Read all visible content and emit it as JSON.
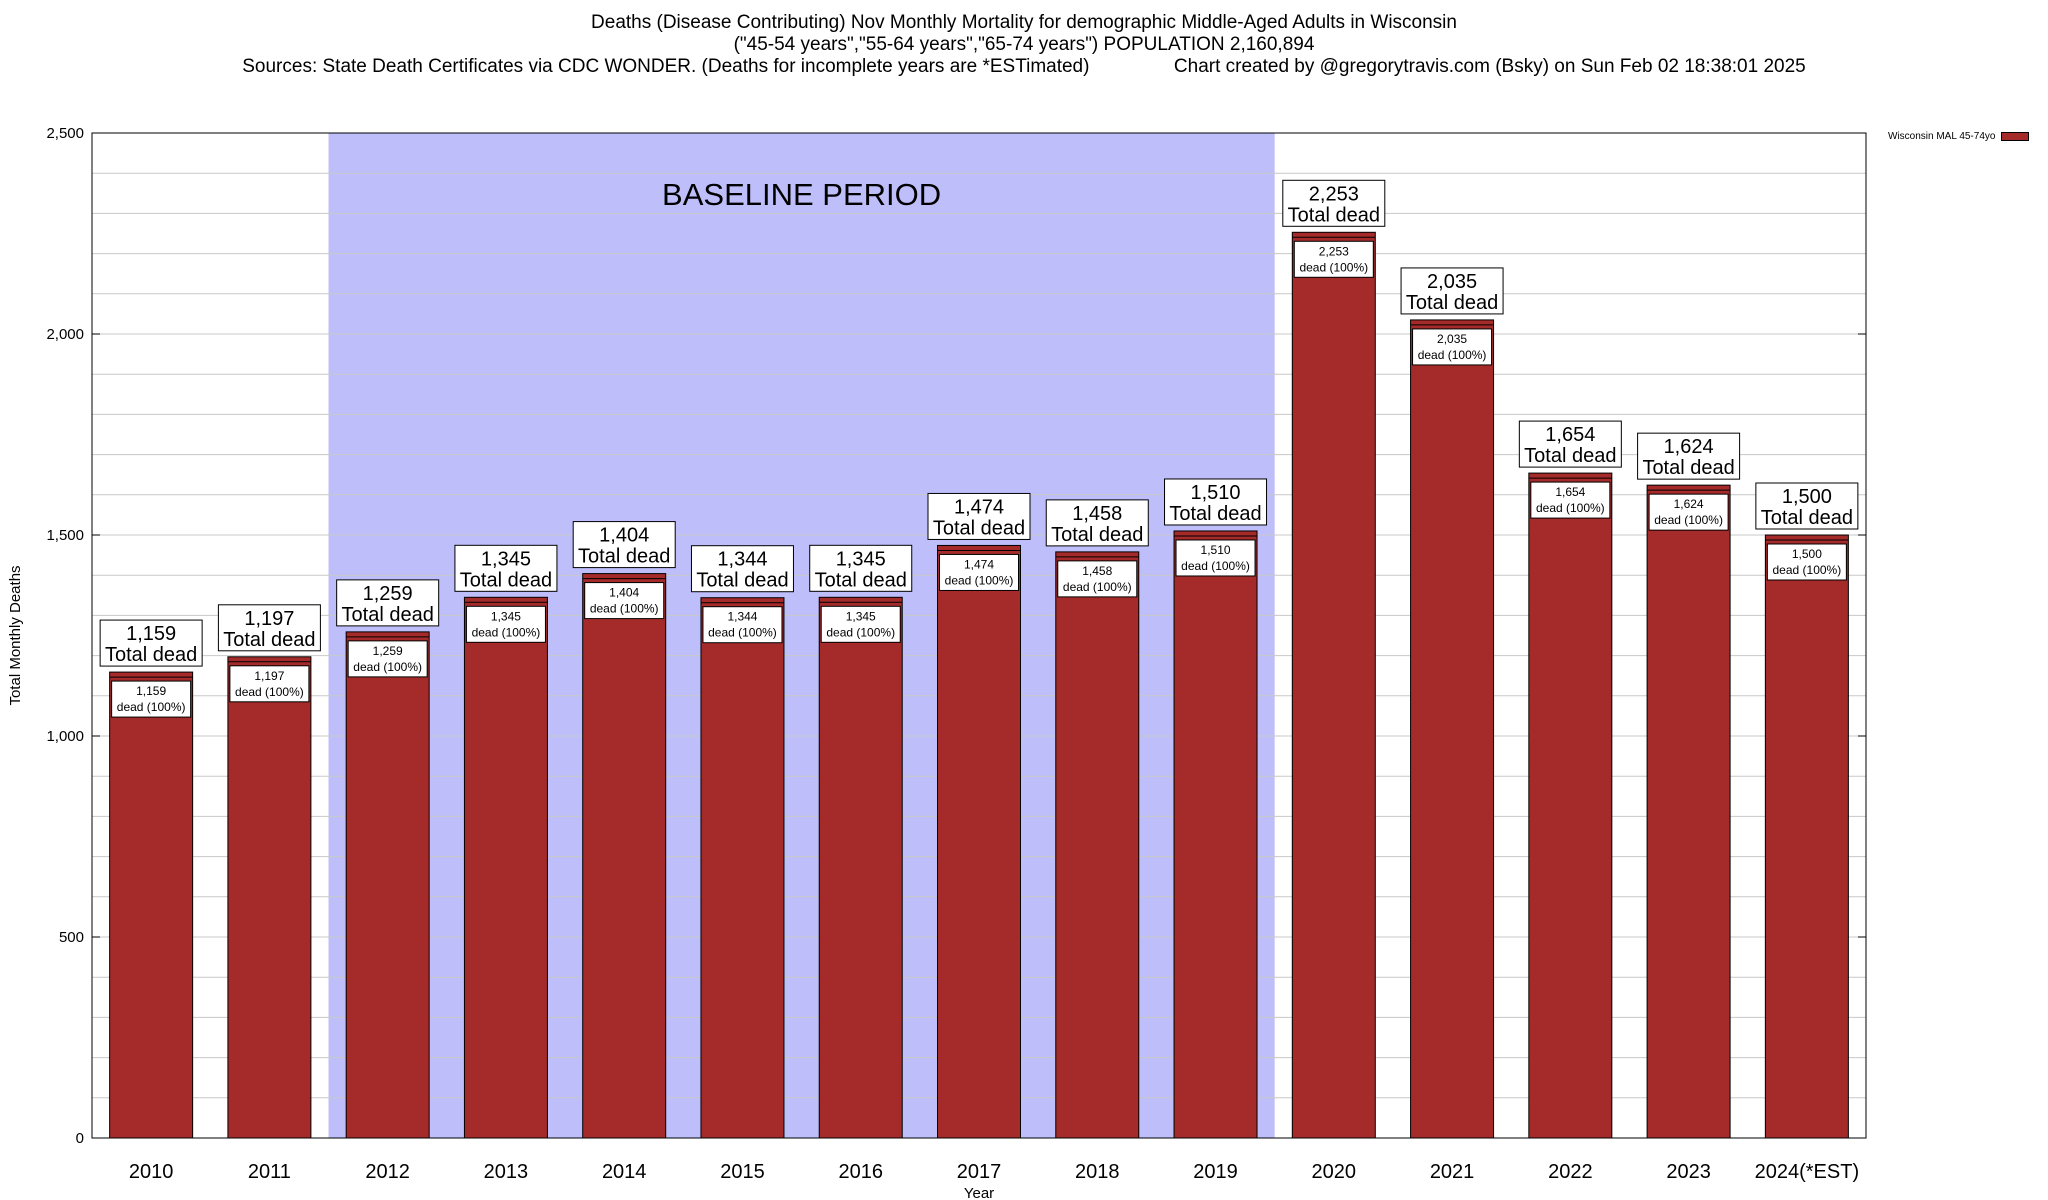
{
  "title_lines": [
    "Deaths (Disease Contributing) Nov Monthly Mortality for demographic Middle-Aged Adults in Wisconsin",
    "(\"45-54 years\",\"55-64 years\",\"65-74 years\") POPULATION 2,160,894",
    "Sources: State Death Certificates via CDC WONDER. (Deaths for incomplete years are *ESTimated)                Chart created by @gregorytravis.com (Bsky) on Sun Feb 02 18:38:01 2025"
  ],
  "chart_data": {
    "type": "bar",
    "categories": [
      "2010",
      "2011",
      "2012",
      "2013",
      "2014",
      "2015",
      "2016",
      "2017",
      "2018",
      "2019",
      "2020",
      "2021",
      "2022",
      "2023",
      "2024(*EST)"
    ],
    "series": [
      {
        "name": "Wisconsin MAL 45-74yo",
        "values": [
          1159,
          1197,
          1259,
          1345,
          1404,
          1344,
          1345,
          1474,
          1458,
          1510,
          2253,
          2035,
          1654,
          1624,
          1500
        ]
      }
    ],
    "value_labels": [
      "1,159",
      "1,197",
      "1,259",
      "1,345",
      "1,404",
      "1,344",
      "1,345",
      "1,474",
      "1,458",
      "1,510",
      "2,253",
      "2,035",
      "1,654",
      "1,624",
      "1,500"
    ],
    "total_label": "Total dead",
    "inner_label": "dead (100%)",
    "xlabel": "Year",
    "ylabel": "Total Monthly Deaths",
    "ylim": [
      0,
      2500
    ],
    "yticks": [
      0,
      500,
      1000,
      1500,
      2000,
      2500
    ],
    "ytick_labels": [
      "0",
      "500",
      "1,000",
      "1,500",
      "2,000",
      "2,500"
    ],
    "baseline_period": {
      "label": "BASELINE PERIOD",
      "from": "2012",
      "to": "2019"
    },
    "grid": true,
    "legend_position": "top-right",
    "colors": {
      "bar": "#a52a2a",
      "baseline": "#bebefb",
      "grid": "#c8c8c8"
    }
  }
}
